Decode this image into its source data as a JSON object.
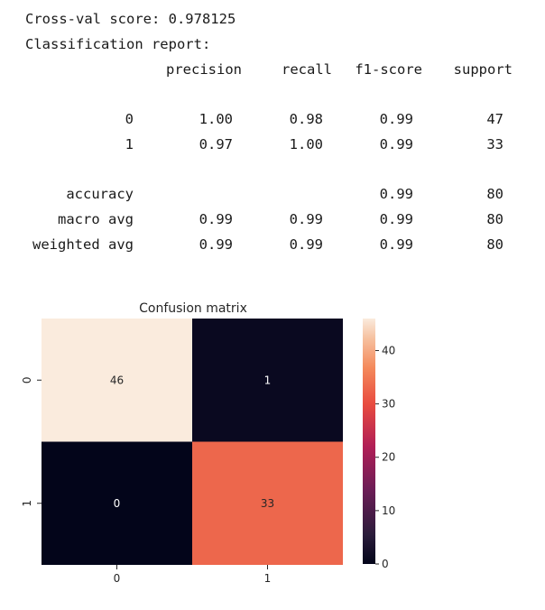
{
  "output": {
    "cv_line": "Cross-val score: 0.978125",
    "report_title": "Classification report:",
    "headers": [
      "precision",
      "recall",
      "f1-score",
      "support"
    ],
    "rows": [
      {
        "label": "0",
        "cells": [
          "1.00",
          "0.98",
          "0.99",
          "47"
        ]
      },
      {
        "label": "1",
        "cells": [
          "0.97",
          "1.00",
          "0.99",
          "33"
        ]
      },
      {
        "label": "accuracy",
        "cells": [
          "",
          "",
          "0.99",
          "80"
        ]
      },
      {
        "label": "macro avg",
        "cells": [
          "0.99",
          "0.99",
          "0.99",
          "80"
        ]
      },
      {
        "label": "weighted avg",
        "cells": [
          "0.99",
          "0.99",
          "0.99",
          "80"
        ]
      }
    ]
  },
  "chart_data": {
    "type": "heatmap",
    "title": "Confusion matrix",
    "x_tick_labels": [
      "0",
      "1"
    ],
    "y_tick_labels": [
      "0",
      "1"
    ],
    "values": [
      [
        46,
        1
      ],
      [
        0,
        33
      ]
    ],
    "annotations": [
      [
        "46",
        "1"
      ],
      [
        "0",
        "33"
      ]
    ],
    "colorbar_ticks": [
      0,
      10,
      20,
      30,
      40
    ],
    "colorbar_tick_labels": [
      "0",
      "10",
      "20",
      "30",
      "40"
    ],
    "vmin": 0,
    "vmax": 46,
    "colormap": "rocket",
    "colors": {
      "low": "#03051a",
      "high": "#faebdd"
    }
  }
}
